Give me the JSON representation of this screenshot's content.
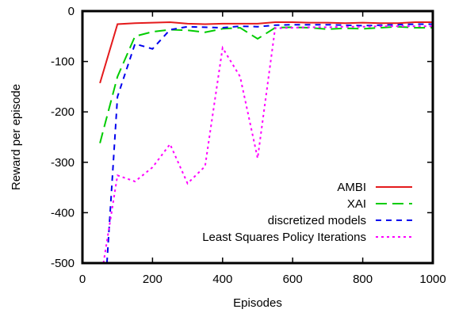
{
  "chart_data": {
    "type": "line",
    "xlabel": "Episodes",
    "ylabel": "Reward per episode",
    "xlim": [
      0,
      1000
    ],
    "ylim": [
      -500,
      0
    ],
    "xticks": [
      0,
      200,
      400,
      600,
      800,
      1000
    ],
    "yticks": [
      0,
      -100,
      -200,
      -300,
      -400,
      -500
    ],
    "grid": false,
    "legend_position": "bottom-right",
    "series": [
      {
        "name": "AMBI",
        "color": "#e41a1c",
        "dash": "solid",
        "x": [
          50,
          100,
          150,
          200,
          250,
          300,
          350,
          400,
          450,
          500,
          550,
          600,
          650,
          700,
          750,
          800,
          850,
          900,
          950,
          1000
        ],
        "y": [
          -143,
          -26,
          -24,
          -23,
          -22,
          -25,
          -26,
          -25,
          -25,
          -25,
          -22,
          -22,
          -23,
          -23,
          -24,
          -23,
          -24,
          -24,
          -22,
          -22
        ]
      },
      {
        "name": "XAI",
        "color": "#00cc00",
        "dash": "long",
        "x": [
          50,
          100,
          150,
          200,
          250,
          300,
          350,
          400,
          450,
          500,
          550,
          600,
          650,
          700,
          750,
          800,
          850,
          900,
          950,
          1000
        ],
        "y": [
          -262,
          -130,
          -50,
          -41,
          -37,
          -38,
          -42,
          -35,
          -33,
          -55,
          -33,
          -32,
          -33,
          -36,
          -34,
          -35,
          -33,
          -31,
          -33,
          -33
        ]
      },
      {
        "name": "discretized models",
        "color": "#0000ee",
        "dash": "short",
        "x": [
          70,
          100,
          150,
          200,
          250,
          300,
          350,
          400,
          450,
          500,
          550,
          600,
          650,
          700,
          750,
          800,
          850,
          900,
          950,
          1000
        ],
        "y": [
          -500,
          -170,
          -65,
          -75,
          -37,
          -31,
          -32,
          -33,
          -30,
          -31,
          -28,
          -27,
          -27,
          -27,
          -28,
          -29,
          -28,
          -27,
          -26,
          -26
        ]
      },
      {
        "name": "Least Squares Policy Iterations",
        "color": "#ff00ff",
        "dash": "dotted",
        "x": [
          60,
          100,
          150,
          200,
          250,
          300,
          350,
          400,
          450,
          500,
          550,
          600,
          650,
          700,
          750,
          800,
          850,
          900,
          950,
          1000
        ],
        "y": [
          -500,
          -326,
          -338,
          -310,
          -264,
          -342,
          -308,
          -73,
          -130,
          -292,
          -34,
          -33,
          -32,
          -32,
          -31,
          -31,
          -30,
          -30,
          -30,
          -30
        ]
      }
    ]
  }
}
